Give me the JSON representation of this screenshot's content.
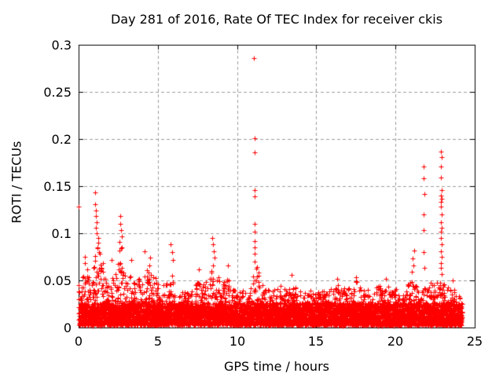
{
  "chart_data": {
    "type": "scatter",
    "title": "Day 281 of 2016, Rate Of TEC Index for receiver ckis",
    "xlabel": "GPS time / hours",
    "ylabel": "ROTI / TECUs",
    "xlim": [
      0,
      25
    ],
    "ylim": [
      0,
      0.3
    ],
    "x_ticks": [
      {
        "value": 0,
        "label": "0"
      },
      {
        "value": 5,
        "label": "5"
      },
      {
        "value": 10,
        "label": "10"
      },
      {
        "value": 15,
        "label": "15"
      },
      {
        "value": 20,
        "label": "20"
      },
      {
        "value": 25,
        "label": "25"
      }
    ],
    "y_ticks": [
      {
        "value": 0,
        "label": "0"
      },
      {
        "value": 0.05,
        "label": "0.05"
      },
      {
        "value": 0.1,
        "label": "0.1"
      },
      {
        "value": 0.15,
        "label": "0.15"
      },
      {
        "value": 0.2,
        "label": "0.2"
      },
      {
        "value": 0.25,
        "label": "0.25"
      },
      {
        "value": 0.3,
        "label": "0.3"
      }
    ],
    "grid": {
      "show": true,
      "dashed": true
    },
    "legend": {
      "show": false
    },
    "marker": {
      "shape": "plus",
      "size": 7
    },
    "colors": {
      "point": "#ff0000",
      "grid": "#9e9e9e",
      "axis": "#000000",
      "text": "#000000",
      "background": "#ffffff"
    },
    "cloud": {
      "x_start": 0.05,
      "x_end": 24.2,
      "base_band": [
        0.002,
        0.026
      ],
      "tail_power": 2.1,
      "seed": 2016281
    },
    "envelope": [
      [
        0,
        0.035
      ],
      [
        0.25,
        0.055
      ],
      [
        0.5,
        0.06
      ],
      [
        0.75,
        0.05
      ],
      [
        1,
        0.075
      ],
      [
        1.25,
        0.095
      ],
      [
        1.5,
        0.06
      ],
      [
        1.75,
        0.055
      ],
      [
        2,
        0.05
      ],
      [
        2.25,
        0.055
      ],
      [
        2.5,
        0.08
      ],
      [
        2.75,
        0.09
      ],
      [
        3,
        0.055
      ],
      [
        3.25,
        0.055
      ],
      [
        3.5,
        0.048
      ],
      [
        3.75,
        0.058
      ],
      [
        4,
        0.055
      ],
      [
        4.25,
        0.065
      ],
      [
        4.5,
        0.068
      ],
      [
        4.75,
        0.055
      ],
      [
        5,
        0.048
      ],
      [
        5.25,
        0.042
      ],
      [
        5.5,
        0.048
      ],
      [
        5.75,
        0.058
      ],
      [
        6,
        0.055
      ],
      [
        6.25,
        0.042
      ],
      [
        6.5,
        0.038
      ],
      [
        6.75,
        0.038
      ],
      [
        7,
        0.04
      ],
      [
        7.25,
        0.046
      ],
      [
        7.5,
        0.05
      ],
      [
        7.75,
        0.048
      ],
      [
        8,
        0.052
      ],
      [
        8.25,
        0.06
      ],
      [
        8.5,
        0.068
      ],
      [
        8.75,
        0.058
      ],
      [
        9,
        0.05
      ],
      [
        9.25,
        0.055
      ],
      [
        9.5,
        0.05
      ],
      [
        9.75,
        0.04
      ],
      [
        10,
        0.04
      ],
      [
        10.25,
        0.042
      ],
      [
        10.5,
        0.04
      ],
      [
        10.75,
        0.045
      ],
      [
        11,
        0.06
      ],
      [
        11.25,
        0.065
      ],
      [
        11.5,
        0.048
      ],
      [
        11.75,
        0.042
      ],
      [
        12,
        0.04
      ],
      [
        12.25,
        0.042
      ],
      [
        12.5,
        0.04
      ],
      [
        12.75,
        0.045
      ],
      [
        13,
        0.042
      ],
      [
        13.25,
        0.04
      ],
      [
        13.5,
        0.048
      ],
      [
        13.75,
        0.042
      ],
      [
        14,
        0.04
      ],
      [
        14.25,
        0.038
      ],
      [
        14.5,
        0.042
      ],
      [
        14.75,
        0.04
      ],
      [
        15,
        0.038
      ],
      [
        15.25,
        0.045
      ],
      [
        15.5,
        0.04
      ],
      [
        15.75,
        0.038
      ],
      [
        16,
        0.042
      ],
      [
        16.25,
        0.046
      ],
      [
        16.5,
        0.044
      ],
      [
        16.75,
        0.046
      ],
      [
        17,
        0.042
      ],
      [
        17.25,
        0.044
      ],
      [
        17.5,
        0.05
      ],
      [
        17.75,
        0.045
      ],
      [
        18,
        0.04
      ],
      [
        18.25,
        0.042
      ],
      [
        18.5,
        0.045
      ],
      [
        18.75,
        0.042
      ],
      [
        19,
        0.045
      ],
      [
        19.25,
        0.05
      ],
      [
        19.5,
        0.045
      ],
      [
        19.75,
        0.038
      ],
      [
        20,
        0.045
      ],
      [
        20.25,
        0.035
      ],
      [
        20.5,
        0.038
      ],
      [
        20.75,
        0.045
      ],
      [
        21,
        0.055
      ],
      [
        21.25,
        0.045
      ],
      [
        21.5,
        0.042
      ],
      [
        21.75,
        0.048
      ],
      [
        22,
        0.042
      ],
      [
        22.25,
        0.05
      ],
      [
        22.5,
        0.045
      ],
      [
        22.75,
        0.055
      ],
      [
        23,
        0.05
      ],
      [
        23.25,
        0.045
      ],
      [
        23.5,
        0.042
      ],
      [
        23.75,
        0.045
      ],
      [
        24,
        0.04
      ],
      [
        24.2,
        0.02
      ]
    ],
    "outliers": [
      [
        0,
        0.128
      ],
      [
        0.02,
        0.045
      ],
      [
        0.02,
        0.038
      ],
      [
        0.02,
        0.03
      ],
      [
        0.02,
        0.022
      ],
      [
        0.02,
        0.015
      ],
      [
        0.02,
        0.008
      ],
      [
        0.38,
        0.075
      ],
      [
        0.42,
        0.068
      ],
      [
        0.55,
        0.062
      ],
      [
        1.03,
        0.143
      ],
      [
        1.05,
        0.131
      ],
      [
        1.07,
        0.124
      ],
      [
        1.1,
        0.118
      ],
      [
        1.12,
        0.112
      ],
      [
        1.08,
        0.106
      ],
      [
        1.15,
        0.1
      ],
      [
        1.22,
        0.095
      ],
      [
        1.25,
        0.09
      ],
      [
        1.18,
        0.085
      ],
      [
        1.3,
        0.08
      ],
      [
        1.55,
        0.068
      ],
      [
        2.07,
        0.072
      ],
      [
        2.62,
        0.118
      ],
      [
        2.65,
        0.11
      ],
      [
        2.68,
        0.103
      ],
      [
        2.72,
        0.097
      ],
      [
        2.6,
        0.091
      ],
      [
        2.75,
        0.085
      ],
      [
        3.32,
        0.072
      ],
      [
        4.18,
        0.081
      ],
      [
        4.5,
        0.074
      ],
      [
        5.82,
        0.088
      ],
      [
        5.9,
        0.08
      ],
      [
        5.95,
        0.072
      ],
      [
        7.58,
        0.062
      ],
      [
        8.42,
        0.095
      ],
      [
        8.47,
        0.088
      ],
      [
        8.52,
        0.081
      ],
      [
        8.57,
        0.074
      ],
      [
        9.42,
        0.066
      ],
      [
        11.08,
        0.286
      ],
      [
        11.12,
        0.201
      ],
      [
        11.1,
        0.186
      ],
      [
        11.1,
        0.146
      ],
      [
        11.13,
        0.139
      ],
      [
        11.12,
        0.11
      ],
      [
        11.1,
        0.102
      ],
      [
        11.13,
        0.092
      ],
      [
        11.11,
        0.085
      ],
      [
        11.09,
        0.078
      ],
      [
        11.1,
        0.07
      ],
      [
        13.42,
        0.056
      ],
      [
        16.3,
        0.052
      ],
      [
        17.5,
        0.053
      ],
      [
        19.4,
        0.052
      ],
      [
        21.2,
        0.082
      ],
      [
        21.1,
        0.073
      ],
      [
        21.15,
        0.066
      ],
      [
        21.05,
        0.059
      ],
      [
        21.8,
        0.171
      ],
      [
        21.8,
        0.158
      ],
      [
        21.82,
        0.142
      ],
      [
        21.8,
        0.12
      ],
      [
        21.78,
        0.103
      ],
      [
        21.8,
        0.08
      ],
      [
        21.82,
        0.063
      ],
      [
        22.88,
        0.187
      ],
      [
        22.9,
        0.181
      ],
      [
        22.87,
        0.171
      ],
      [
        22.89,
        0.159
      ],
      [
        22.9,
        0.146
      ],
      [
        22.88,
        0.14
      ],
      [
        22.91,
        0.137
      ],
      [
        22.87,
        0.133
      ],
      [
        22.89,
        0.128
      ],
      [
        22.9,
        0.12
      ],
      [
        22.88,
        0.112
      ],
      [
        22.91,
        0.106
      ],
      [
        22.87,
        0.102
      ],
      [
        22.89,
        0.095
      ],
      [
        22.9,
        0.088
      ],
      [
        22.88,
        0.081
      ],
      [
        22.91,
        0.075
      ],
      [
        22.87,
        0.068
      ],
      [
        22.89,
        0.063
      ],
      [
        22.9,
        0.057
      ],
      [
        23.6,
        0.05
      ]
    ]
  }
}
